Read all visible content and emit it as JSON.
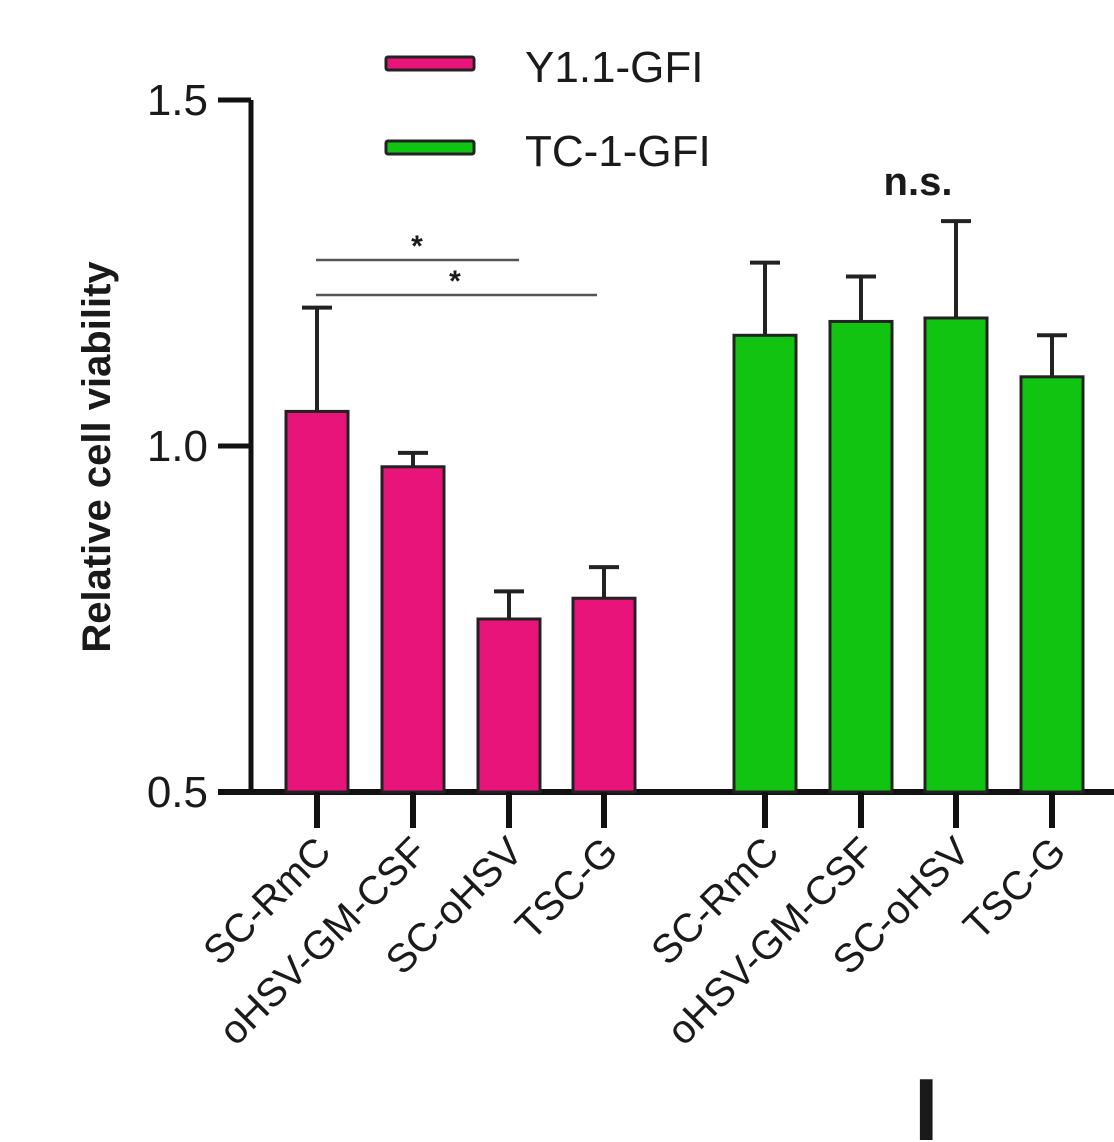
{
  "chart_data": {
    "type": "bar",
    "ylabel": "Relative cell viability",
    "ylim": [
      0.5,
      1.5
    ],
    "yticks": [
      "0.5",
      "1.0",
      "1.5"
    ],
    "groups": [
      {
        "series": "Y1.1-GFI",
        "color": "#e8147a",
        "categories": [
          "SC-RmC",
          "oHSV-GM-CSF",
          "SC-oHSV",
          "TSC-G"
        ],
        "values": [
          1.05,
          0.97,
          0.75,
          0.78
        ],
        "errors": [
          0.15,
          0.02,
          0.04,
          0.045
        ]
      },
      {
        "series": "TC-1-GFI",
        "color": "#12c412",
        "categories": [
          "SC-RmC",
          "oHSV-GM-CSF",
          "SC-oHSV",
          "TSC-G"
        ],
        "values": [
          1.16,
          1.18,
          1.185,
          1.1
        ],
        "errors": [
          0.105,
          0.065,
          0.14,
          0.06
        ]
      }
    ],
    "legend": [
      "Y1.1-GFI",
      "TC-1-GFI"
    ],
    "legend_position": "top-left",
    "annotations": [
      {
        "text": "*",
        "from_category": 0,
        "to_category": 2,
        "group": 0
      },
      {
        "text": "*",
        "from_category": 0,
        "to_category": 3,
        "group": 0
      },
      {
        "text": "n.s.",
        "group": 1
      }
    ]
  },
  "panel_letter": "I"
}
